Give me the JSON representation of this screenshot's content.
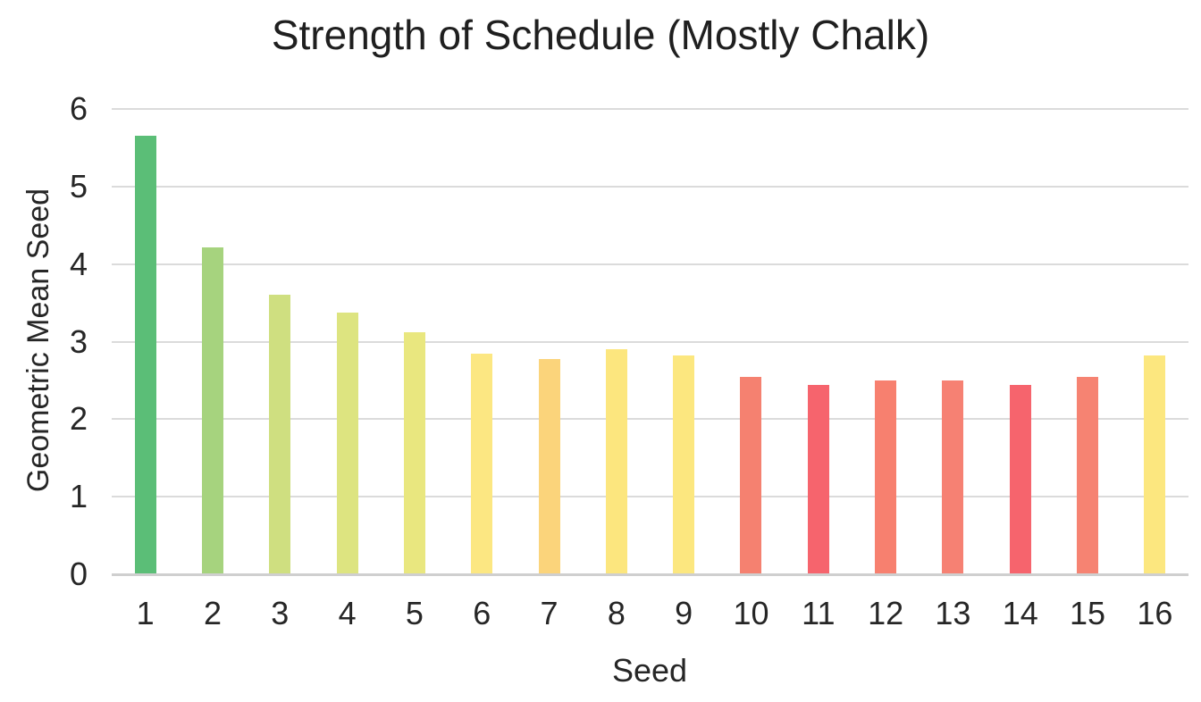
{
  "chart_data": {
    "type": "bar",
    "title": "Strength of Schedule (Mostly Chalk)",
    "xlabel": "Seed",
    "ylabel": "Geometric Mean Seed",
    "categories": [
      "1",
      "2",
      "3",
      "4",
      "5",
      "6",
      "7",
      "8",
      "9",
      "10",
      "11",
      "12",
      "13",
      "14",
      "15",
      "16"
    ],
    "values": [
      5.65,
      4.22,
      3.6,
      3.38,
      3.12,
      2.84,
      2.78,
      2.9,
      2.82,
      2.55,
      2.44,
      2.5,
      2.5,
      2.44,
      2.55,
      2.82
    ],
    "bar_colors": [
      "#5BBE77",
      "#A6D37E",
      "#CFDF80",
      "#DDE480",
      "#E9E77F",
      "#FCE782",
      "#FBD47B",
      "#FCE67E",
      "#FCE77F",
      "#F58170",
      "#F6646D",
      "#F7806F",
      "#F68173",
      "#F6646D",
      "#F68372",
      "#FCE77F"
    ],
    "ylim": [
      0,
      6
    ],
    "yticks": [
      0,
      1,
      2,
      3,
      4,
      5,
      6
    ],
    "grid": "horizontal",
    "legend": "none",
    "gridline_color": "#DBDBDB",
    "axis_line_color": "#CFCFCF",
    "text_color": "#262626",
    "background_color": "#FFFFFF"
  }
}
